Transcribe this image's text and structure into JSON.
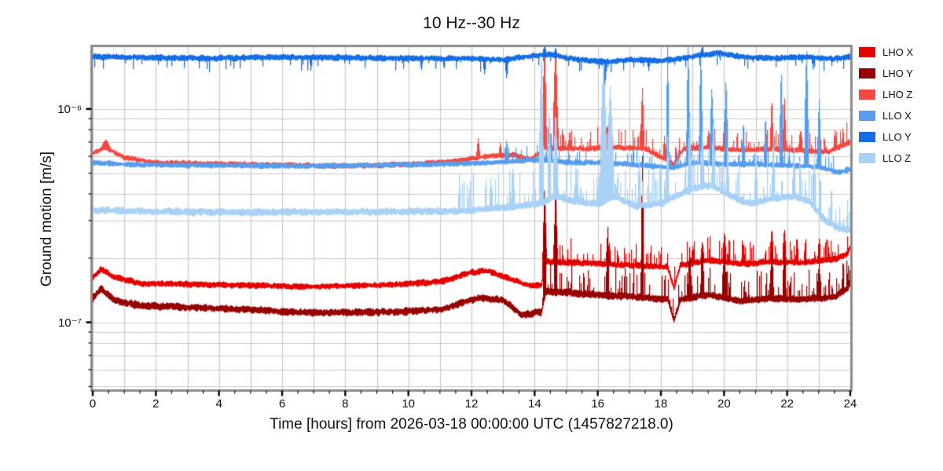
{
  "chart_data": {
    "type": "line",
    "title": "10 Hz--30 Hz",
    "xlabel": "Time [hours] from 2026-03-18 00:00:00 UTC (1457827218.0)",
    "ylabel": "Ground motion [m/s]",
    "x_unit": "hours",
    "xlim": [
      0,
      24
    ],
    "x_major_ticks": [
      0,
      2,
      4,
      6,
      8,
      10,
      12,
      14,
      16,
      18,
      20,
      22,
      24
    ],
    "x_minor_step": 0.5,
    "x_grid_step": 1,
    "yscale": "log",
    "ylim": [
      4.85e-08,
      1.95e-06
    ],
    "y_tick_labels": [
      {
        "value": 1e-06,
        "label": "10⁻⁶"
      },
      {
        "value": 1e-07,
        "label": "10⁻⁷"
      }
    ],
    "grid": {
      "on": true,
      "color": "#c9c9c9",
      "spine_color": "#8b8b8b",
      "tick_color": "#000000"
    },
    "legend_position": "outside-right",
    "series": [
      {
        "name": "LHO X",
        "color": "#e50000",
        "noise": 0.017,
        "texture": {
          "up_prob": 0.28,
          "up_amp": 0.1,
          "from": 14.2
        },
        "baseline": [
          [
            0,
            1.62e-07
          ],
          [
            0.25,
            1.78e-07
          ],
          [
            0.7,
            1.62e-07
          ],
          [
            1.5,
            1.52e-07
          ],
          [
            4,
            1.5e-07
          ],
          [
            7,
            1.47e-07
          ],
          [
            9.5,
            1.5e-07
          ],
          [
            11,
            1.55e-07
          ],
          [
            12,
            1.72e-07
          ],
          [
            12.5,
            1.74e-07
          ],
          [
            13.2,
            1.6e-07
          ],
          [
            13.8,
            1.48e-07
          ],
          [
            14.2,
            1.5e-07
          ],
          [
            14.35,
            1.92e-07
          ],
          [
            15.5,
            1.9e-07
          ],
          [
            17,
            1.85e-07
          ],
          [
            18.2,
            1.82e-07
          ],
          [
            18.4,
            1.45e-07
          ],
          [
            18.6,
            1.85e-07
          ],
          [
            19.5,
            1.95e-07
          ],
          [
            20.5,
            1.88e-07
          ],
          [
            21.5,
            1.92e-07
          ],
          [
            22.5,
            1.9e-07
          ],
          [
            23.5,
            1.98e-07
          ],
          [
            23.9,
            2.1e-07
          ],
          [
            24,
            2.3e-07
          ]
        ],
        "spikes": [
          [
            14.3,
            3.9e-07,
            0.07
          ],
          [
            14.65,
            3.6e-07,
            0.07
          ],
          [
            16.35,
            2.4e-07,
            0.06
          ],
          [
            17.4,
            2.7e-07,
            0.05
          ],
          [
            19.0,
            2.3e-07,
            0.06
          ],
          [
            19.3,
            2.4e-07,
            0.06
          ],
          [
            20.0,
            2.7e-07,
            0.06
          ],
          [
            20.6,
            2.4e-07,
            0.05
          ],
          [
            21.5,
            2.8e-07,
            0.06
          ],
          [
            21.9,
            2.8e-07,
            0.06
          ],
          [
            22.3,
            2.5e-07,
            0.05
          ],
          [
            23.0,
            2.5e-07,
            0.05
          ]
        ]
      },
      {
        "name": "LHO Y",
        "color": "#970000",
        "noise": 0.02,
        "texture": {
          "up_prob": 0.3,
          "up_amp": 0.12,
          "from": 14.2
        },
        "baseline": [
          [
            0,
            1.3e-07
          ],
          [
            0.25,
            1.44e-07
          ],
          [
            0.7,
            1.26e-07
          ],
          [
            1.5,
            1.2e-07
          ],
          [
            4,
            1.16e-07
          ],
          [
            7,
            1.11e-07
          ],
          [
            9.5,
            1.12e-07
          ],
          [
            11,
            1.15e-07
          ],
          [
            12.2,
            1.3e-07
          ],
          [
            13.0,
            1.27e-07
          ],
          [
            13.6,
            1.08e-07
          ],
          [
            14.2,
            1.12e-07
          ],
          [
            14.35,
            1.4e-07
          ],
          [
            15.5,
            1.36e-07
          ],
          [
            17,
            1.32e-07
          ],
          [
            18.2,
            1.28e-07
          ],
          [
            18.4,
            1.02e-07
          ],
          [
            18.6,
            1.28e-07
          ],
          [
            19.5,
            1.35e-07
          ],
          [
            20.5,
            1.26e-07
          ],
          [
            21.5,
            1.3e-07
          ],
          [
            22.5,
            1.28e-07
          ],
          [
            23.5,
            1.32e-07
          ],
          [
            23.9,
            1.45e-07
          ],
          [
            24,
            1.55e-07
          ]
        ],
        "spikes": [
          [
            14.3,
            4.7e-07,
            0.06
          ],
          [
            14.65,
            4.7e-07,
            0.06
          ],
          [
            16.3,
            3e-07,
            0.05
          ],
          [
            17.4,
            6.3e-07,
            0.05
          ],
          [
            18.9,
            2.3e-07,
            0.06
          ],
          [
            19.3,
            2.4e-07,
            0.06
          ],
          [
            20.0,
            2.3e-07,
            0.06
          ],
          [
            21.5,
            2.3e-07,
            0.06
          ],
          [
            21.9,
            2.4e-07,
            0.06
          ],
          [
            23.0,
            2e-07,
            0.05
          ]
        ]
      },
      {
        "name": "LHO Z",
        "color": "#f24a42",
        "noise": 0.015,
        "texture": {
          "up_prob": 0.3,
          "up_amp": 0.09,
          "from": 14.2
        },
        "baseline": [
          [
            0,
            6.2e-07
          ],
          [
            0.4,
            6.6e-07
          ],
          [
            1.0,
            5.9e-07
          ],
          [
            2,
            5.6e-07
          ],
          [
            5,
            5.5e-07
          ],
          [
            8,
            5.4e-07
          ],
          [
            10,
            5.5e-07
          ],
          [
            11.5,
            5.7e-07
          ],
          [
            12.5,
            6e-07
          ],
          [
            13.3,
            6.1e-07
          ],
          [
            13.9,
            5.8e-07
          ],
          [
            14.3,
            6.6e-07
          ],
          [
            15.5,
            6.5e-07
          ],
          [
            16.5,
            6.6e-07
          ],
          [
            17.5,
            6.5e-07
          ],
          [
            18.4,
            5.5e-07
          ],
          [
            18.7,
            6.5e-07
          ],
          [
            19.5,
            6.6e-07
          ],
          [
            20.5,
            6.4e-07
          ],
          [
            21.5,
            6.5e-07
          ],
          [
            22.5,
            6.4e-07
          ],
          [
            23.3,
            6.3e-07
          ],
          [
            24,
            7e-07
          ]
        ],
        "spikes": [
          [
            0.4,
            7.2e-07,
            0.15
          ],
          [
            12.2,
            7.3e-07,
            0.06
          ],
          [
            12.9,
            7e-07,
            0.05
          ],
          [
            14.3,
            2.1e-06,
            0.07
          ],
          [
            14.65,
            2.1e-06,
            0.08
          ],
          [
            15.1,
            8e-07,
            0.05
          ],
          [
            16.3,
            8.5e-07,
            0.08
          ],
          [
            17.4,
            1.28e-06,
            0.06
          ],
          [
            18.1,
            7.5e-07,
            0.05
          ],
          [
            19.5,
            8e-07,
            0.06
          ],
          [
            20.0,
            9e-07,
            0.05
          ],
          [
            21.5,
            1.15e-06,
            0.05
          ],
          [
            21.9,
            1.2e-06,
            0.05
          ],
          [
            22.4,
            8e-07,
            0.05
          ],
          [
            23.5,
            8e-07,
            0.05
          ]
        ]
      },
      {
        "name": "LLO X",
        "color": "#569dee",
        "noise": 0.015,
        "texture": {
          "up_prob": 0.18,
          "up_amp": 0.07,
          "from": 13.0
        },
        "baseline": [
          [
            0,
            5.6e-07
          ],
          [
            1,
            5.5e-07
          ],
          [
            3,
            5.45e-07
          ],
          [
            6,
            5.4e-07
          ],
          [
            9,
            5.45e-07
          ],
          [
            11,
            5.5e-07
          ],
          [
            12.5,
            5.6e-07
          ],
          [
            13.5,
            5.7e-07
          ],
          [
            14.3,
            5.8e-07
          ],
          [
            15,
            5.6e-07
          ],
          [
            16,
            5.6e-07
          ],
          [
            17,
            5.5e-07
          ],
          [
            18.35,
            5.3e-07
          ],
          [
            19,
            5.6e-07
          ],
          [
            20,
            5.5e-07
          ],
          [
            21,
            5.5e-07
          ],
          [
            22,
            5.45e-07
          ],
          [
            23,
            5.35e-07
          ],
          [
            23.6,
            5.05e-07
          ],
          [
            24,
            5.2e-07
          ]
        ],
        "spikes": [
          [
            13.1,
            7.2e-07,
            0.06
          ],
          [
            14.2,
            1.35e-06,
            0.06
          ],
          [
            14.5,
            8e-07,
            0.06
          ],
          [
            16.2,
            9e-07,
            0.08
          ],
          [
            18.2,
            2.1e-06,
            0.05
          ],
          [
            18.85,
            2.1e-06,
            0.06
          ],
          [
            19.25,
            2e-06,
            0.06
          ],
          [
            19.6,
            1.3e-06,
            0.07
          ],
          [
            20.05,
            1.45e-06,
            0.06
          ],
          [
            20.6,
            9e-07,
            0.05
          ],
          [
            21.3,
            9.5e-07,
            0.05
          ],
          [
            21.8,
            1.6e-06,
            0.06
          ],
          [
            22.6,
            2e-06,
            0.07
          ],
          [
            23.0,
            1.15e-06,
            0.06
          ]
        ]
      },
      {
        "name": "LLO Y",
        "color": "#146de2",
        "noise": 0.016,
        "texture": {
          "down_prob": 0.1,
          "down_amp": 0.05,
          "from": 0
        },
        "baseline": [
          [
            0,
            1.76e-06
          ],
          [
            2,
            1.74e-06
          ],
          [
            4,
            1.73e-06
          ],
          [
            6,
            1.75e-06
          ],
          [
            8,
            1.74e-06
          ],
          [
            10,
            1.73e-06
          ],
          [
            12,
            1.72e-06
          ],
          [
            13,
            1.7e-06
          ],
          [
            14,
            1.78e-06
          ],
          [
            14.5,
            1.8e-06
          ],
          [
            15,
            1.73e-06
          ],
          [
            16.2,
            1.66e-06
          ],
          [
            17,
            1.7e-06
          ],
          [
            18,
            1.68e-06
          ],
          [
            19,
            1.76e-06
          ],
          [
            19.8,
            1.84e-06
          ],
          [
            20.5,
            1.76e-06
          ],
          [
            21.5,
            1.73e-06
          ],
          [
            22.5,
            1.75e-06
          ],
          [
            23.5,
            1.72e-06
          ],
          [
            24,
            1.76e-06
          ]
        ],
        "spikes": [
          [
            6.9,
            1.5e-06,
            0.04
          ],
          [
            10.4,
            1.5e-06,
            0.04
          ],
          [
            12.4,
            1.45e-06,
            0.05
          ],
          [
            13.1,
            1.38e-06,
            0.05
          ],
          [
            14.3,
            2e-06,
            0.06
          ],
          [
            14.65,
            1.95e-06,
            0.05
          ],
          [
            16.2,
            1.25e-06,
            0.07
          ],
          [
            17.6,
            1.5e-06,
            0.04
          ],
          [
            19.3,
            2e-06,
            0.05
          ]
        ]
      },
      {
        "name": "LLO Z",
        "color": "#a9d1f5",
        "noise": 0.02,
        "texture": {
          "up_prob": 0.3,
          "up_amp": 0.16,
          "from": 11.5
        },
        "baseline": [
          [
            0,
            3.35e-07
          ],
          [
            2,
            3.3e-07
          ],
          [
            5,
            3.28e-07
          ],
          [
            8,
            3.3e-07
          ],
          [
            10,
            3.3e-07
          ],
          [
            11.5,
            3.32e-07
          ],
          [
            12.5,
            3.4e-07
          ],
          [
            13.5,
            3.5e-07
          ],
          [
            14.2,
            3.6e-07
          ],
          [
            14.6,
            3.9e-07
          ],
          [
            15.2,
            3.7e-07
          ],
          [
            16,
            3.6e-07
          ],
          [
            16.5,
            3.9e-07
          ],
          [
            17.2,
            3.5e-07
          ],
          [
            18,
            3.6e-07
          ],
          [
            18.9,
            4.2e-07
          ],
          [
            19.6,
            4.4e-07
          ],
          [
            20.2,
            3.9e-07
          ],
          [
            20.8,
            3.6e-07
          ],
          [
            21.5,
            3.8e-07
          ],
          [
            22.2,
            3.9e-07
          ],
          [
            22.7,
            3.7e-07
          ],
          [
            23.1,
            3.1e-07
          ],
          [
            23.6,
            2.75e-07
          ],
          [
            24,
            2.7e-07
          ]
        ],
        "spikes": [
          [
            12.6,
            4.8e-07,
            0.05
          ],
          [
            13.3,
            5.4e-07,
            0.06
          ],
          [
            14.2,
            2e-06,
            0.08
          ],
          [
            14.45,
            1.05e-06,
            0.06
          ],
          [
            14.65,
            1e-06,
            0.08
          ],
          [
            15.3,
            5.6e-07,
            0.05
          ],
          [
            16.17,
            1.8e-06,
            0.12
          ],
          [
            16.38,
            1.3e-06,
            0.12
          ],
          [
            17.3,
            6e-07,
            0.05
          ],
          [
            18.2,
            7.5e-07,
            0.05
          ],
          [
            18.9,
            9.5e-07,
            0.06
          ],
          [
            19.3,
            8e-07,
            0.06
          ],
          [
            19.65,
            9e-07,
            0.06
          ],
          [
            20.1,
            7e-07,
            0.05
          ],
          [
            21.0,
            6.5e-07,
            0.05
          ],
          [
            21.55,
            7.5e-07,
            0.05
          ],
          [
            22.2,
            7e-07,
            0.05
          ],
          [
            22.85,
            6.5e-07,
            0.05
          ]
        ]
      }
    ]
  }
}
